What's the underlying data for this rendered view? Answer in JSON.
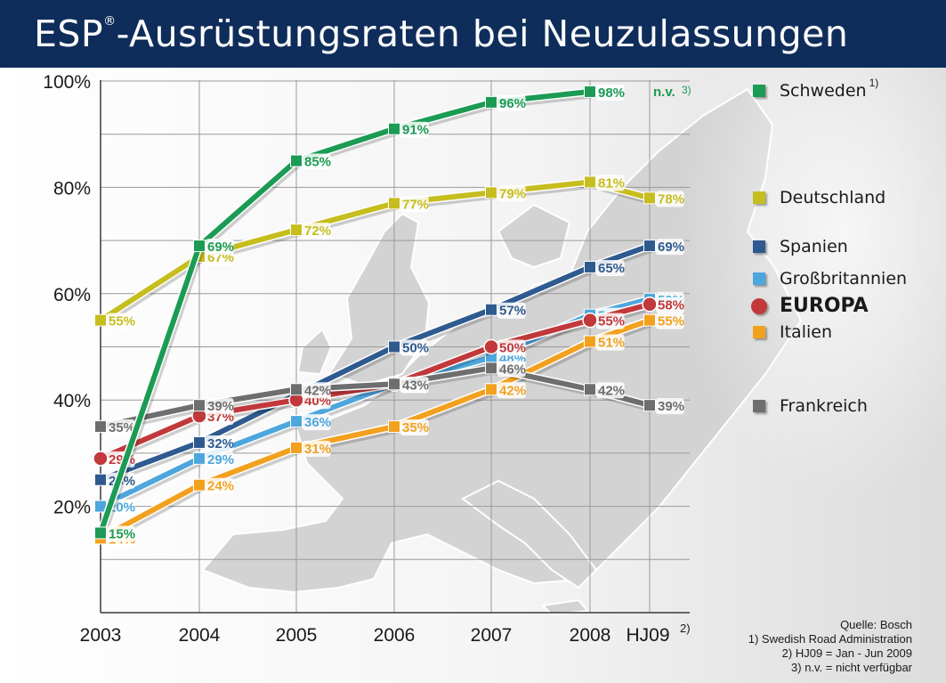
{
  "header": {
    "title_prefix": "ESP",
    "title_reg": "®",
    "title_rest": "-Ausrüstungsraten bei Neuzulassungen"
  },
  "legend": [
    {
      "label": "Schweden",
      "note": "1)",
      "color": "#1b9b54",
      "shape": "square"
    },
    {
      "label": "Deutschland",
      "note": "",
      "color": "#c6bd1f",
      "shape": "square"
    },
    {
      "label": "Spanien",
      "note": "",
      "color": "#2e5a8f",
      "shape": "square"
    },
    {
      "label": "Großbritannien",
      "note": "",
      "color": "#4da6dc",
      "shape": "square"
    },
    {
      "label": "EUROPA",
      "note": "",
      "color": "#c1393b",
      "shape": "circle"
    },
    {
      "label": "Italien",
      "note": "",
      "color": "#f2a11f",
      "shape": "square"
    },
    {
      "label": "Frankreich",
      "note": "",
      "color": "#6e6e6e",
      "shape": "square"
    }
  ],
  "source": {
    "line1": "Quelle: Bosch",
    "line2": "1) Swedish Road Administration",
    "line3": "2) HJ09 = Jan - Jun 2009",
    "line4": "3) n.v. = nicht verfügbar"
  },
  "chart_data": {
    "type": "line",
    "categories": [
      "2003",
      "2004",
      "2005",
      "2006",
      "2007",
      "2008",
      "HJ09"
    ],
    "category_notes": [
      "",
      "",
      "",
      "",
      "",
      "",
      "2)"
    ],
    "y_ticks": [
      "20%",
      "40%",
      "60%",
      "80%",
      "100%"
    ],
    "ylim": [
      0,
      100
    ],
    "grid": true,
    "legend_position": "right",
    "na_label": "n.v.",
    "na_note": "3)",
    "series": [
      {
        "name": "Schweden",
        "color": "#1b9b54",
        "shape": "square",
        "values": [
          15,
          69,
          85,
          91,
          96,
          98,
          null
        ],
        "labels": [
          "15%",
          "69%",
          "85%",
          "91%",
          "96%",
          "98%",
          ""
        ]
      },
      {
        "name": "Deutschland",
        "color": "#c6bd1f",
        "shape": "square",
        "values": [
          55,
          67,
          72,
          77,
          79,
          81,
          78
        ],
        "labels": [
          "55%",
          "67%",
          "72%",
          "77%",
          "79%",
          "81%",
          "78%"
        ]
      },
      {
        "name": "Spanien",
        "color": "#2e5a8f",
        "shape": "square",
        "values": [
          25,
          32,
          41,
          50,
          57,
          65,
          69
        ],
        "labels": [
          "25%",
          "32%",
          "41%",
          "50%",
          "57%",
          "65%",
          "69%"
        ]
      },
      {
        "name": "Großbritannien",
        "color": "#4da6dc",
        "shape": "square",
        "values": [
          20,
          29,
          36,
          43,
          48,
          56,
          59
        ],
        "labels": [
          "20%",
          "29%",
          "36%",
          "43%",
          "48%",
          "56%",
          "59%"
        ]
      },
      {
        "name": "EUROPA",
        "color": "#c1393b",
        "shape": "circle",
        "values": [
          29,
          37,
          40,
          43,
          50,
          55,
          58
        ],
        "labels": [
          "29%",
          "37%",
          "40%",
          "43%",
          "50%",
          "55%",
          "58%"
        ]
      },
      {
        "name": "Italien",
        "color": "#f2a11f",
        "shape": "square",
        "values": [
          14,
          24,
          31,
          35,
          42,
          51,
          55
        ],
        "labels": [
          "14%",
          "24%",
          "31%",
          "35%",
          "42%",
          "51%",
          "55%"
        ]
      },
      {
        "name": "Frankreich",
        "color": "#6e6e6e",
        "shape": "square",
        "values": [
          35,
          39,
          42,
          43,
          46,
          42,
          39
        ],
        "labels": [
          "35%",
          "39%",
          "42%",
          "43%",
          "46%",
          "42%",
          "39%"
        ]
      }
    ]
  }
}
